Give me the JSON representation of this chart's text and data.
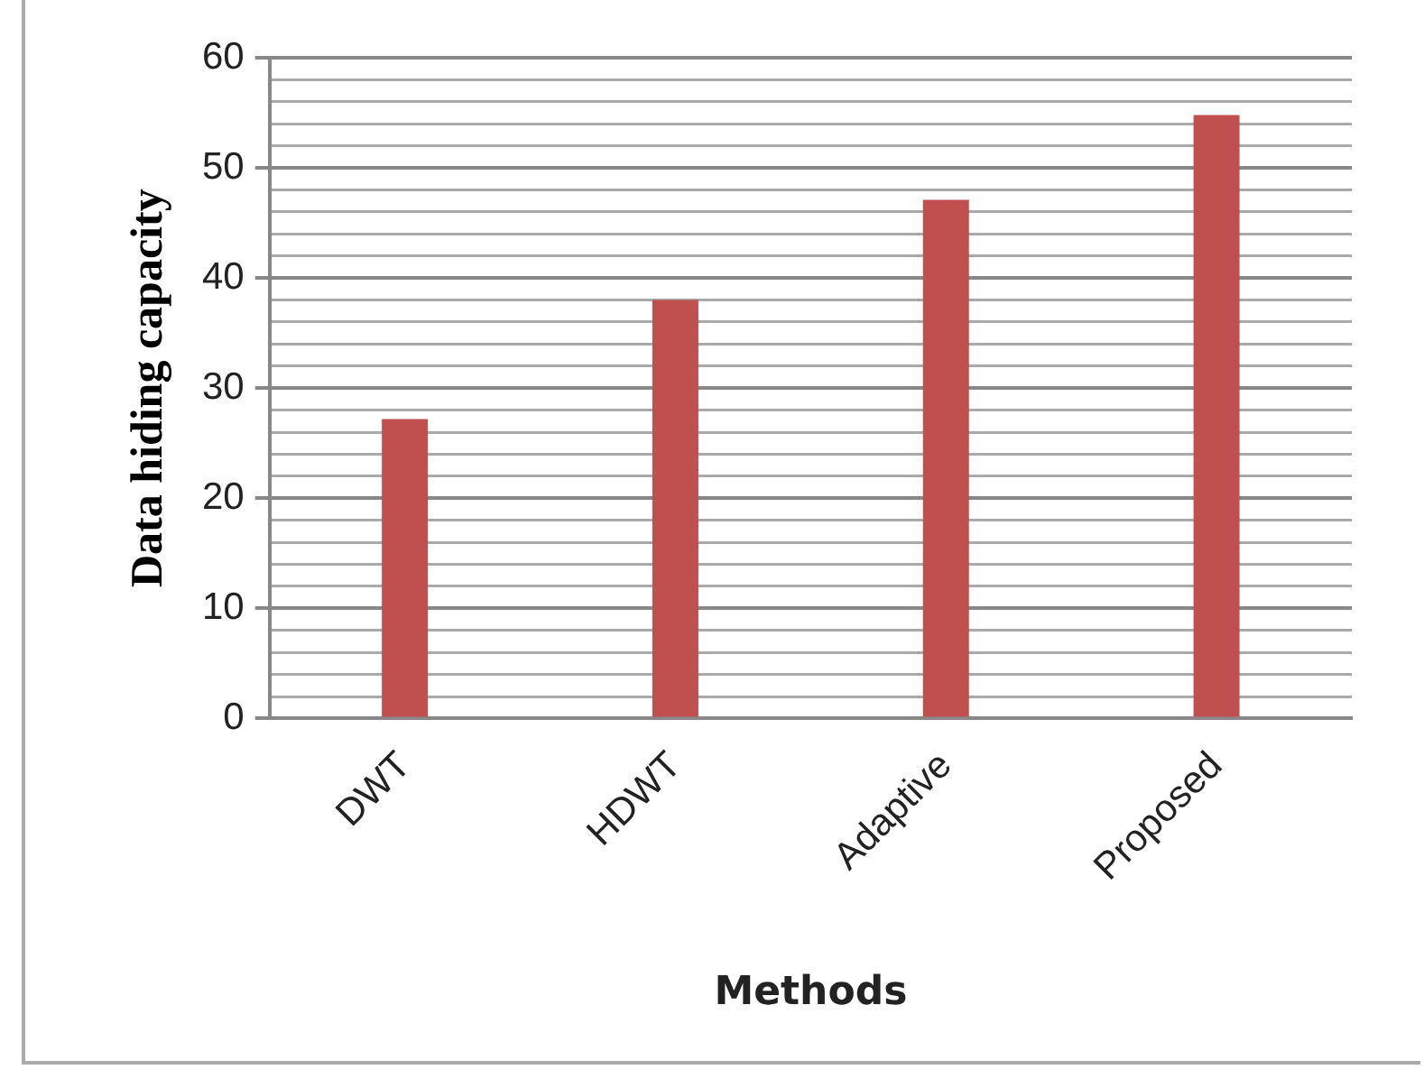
{
  "chart_data": {
    "type": "bar",
    "xlabel": "Methods",
    "ylabel": "Data hiding capacity",
    "categories": [
      "DWT",
      "HDWT",
      "Adaptive",
      "Proposed"
    ],
    "values": [
      27.2,
      38,
      47.1,
      54.8
    ],
    "color": "#c0504d",
    "ylim": [
      0,
      60
    ],
    "yticks": [
      0,
      {
        "value": 2,
        "label": null
      },
      {
        "value": 4,
        "label": null
      },
      {
        "value": 6,
        "label": null
      },
      {
        "value": 8,
        "label": null
      },
      10,
      {
        "value": 12,
        "label": null
      },
      {
        "value": 14,
        "label": null
      },
      {
        "value": 16,
        "label": null
      },
      {
        "value": 18,
        "label": null
      },
      20,
      {
        "value": 22,
        "label": null
      },
      {
        "value": 24,
        "label": null
      },
      {
        "value": 26,
        "label": null
      },
      {
        "value": 28,
        "label": null
      },
      30,
      {
        "value": 32,
        "label": null
      },
      {
        "value": 34,
        "label": null
      },
      {
        "value": 36,
        "label": null
      },
      {
        "value": 38,
        "label": null
      },
      40,
      {
        "value": 42,
        "label": null
      },
      {
        "value": 44,
        "label": null
      },
      {
        "value": 46,
        "label": null
      },
      {
        "value": 48,
        "label": null
      },
      50,
      {
        "value": 52,
        "label": null
      },
      {
        "value": 54,
        "label": null
      },
      {
        "value": 56,
        "label": null
      },
      {
        "value": 58,
        "label": null
      },
      60
    ],
    "grid": "y",
    "legend": false
  }
}
